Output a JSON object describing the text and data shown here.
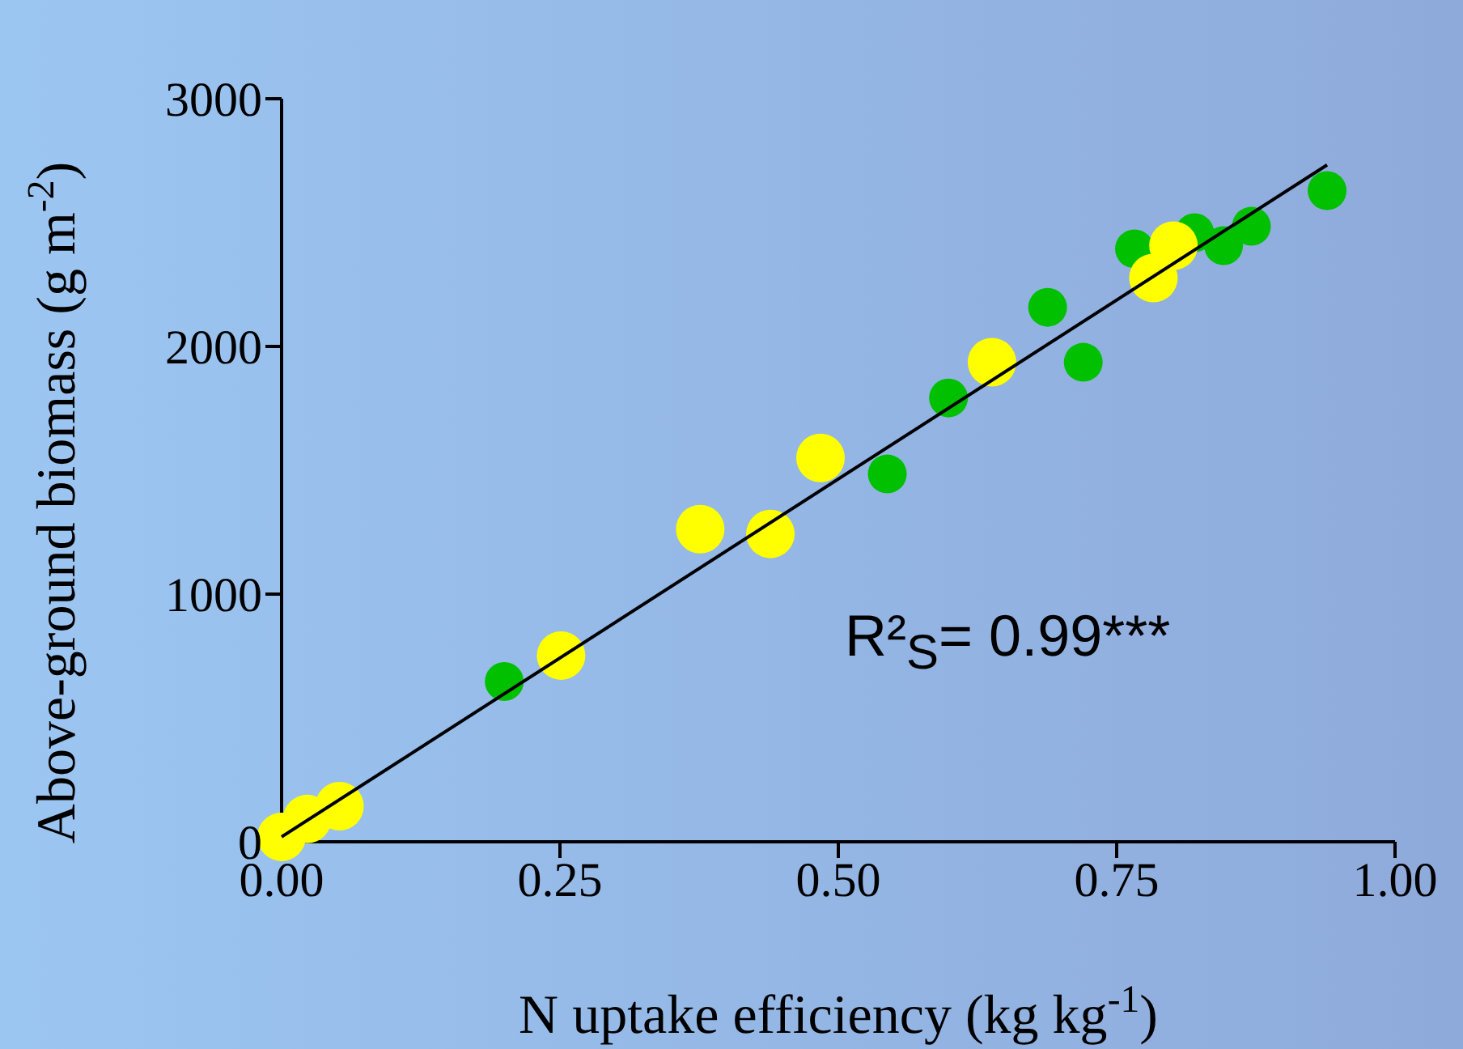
{
  "chart_data": {
    "type": "scatter",
    "xlabel": "N uptake efficiency (kg kg$^{-1}$)",
    "ylabel": "Above-ground biomass (g m$^{-2}$)",
    "annotations": [
      "R²$_{S}$= 0.99***"
    ],
    "series": [
      {
        "color": "#00c000",
        "x": [
          0.2,
          0.544,
          0.599,
          0.688,
          0.72,
          0.766,
          0.82,
          0.846,
          0.871,
          0.939
        ],
        "values": [
          647,
          1485,
          1792,
          2158,
          1936,
          2394,
          2459,
          2407,
          2485,
          2629
        ]
      },
      {
        "color": "#ffff00",
        "x": [
          0,
          0.023,
          0.052,
          0.251,
          0.376,
          0.439,
          0.484,
          0.638,
          0.783,
          0.801
        ],
        "values": [
          20,
          92,
          144,
          752,
          1262,
          1243,
          1550,
          1936,
          2276,
          2407
        ]
      },
      {
        "type": "line",
        "marker": "none",
        "color": "#000000",
        "x": [
          0,
          0.939
        ],
        "values": [
          20,
          2733
        ]
      }
    ],
    "xlim": [
      0,
      1
    ],
    "xticks": [
      {
        "value": 0,
        "label": "0.00"
      },
      {
        "value": 0.25,
        "label": "0.25"
      },
      {
        "value": 0.5,
        "label": "0.50"
      },
      {
        "value": 0.75,
        "label": "0.75"
      },
      {
        "value": 1,
        "label": "1.00"
      }
    ],
    "ylim": [
      0,
      3000
    ],
    "yticks": [
      0,
      1000,
      2000,
      3000
    ],
    "marker": "circle",
    "grid": false,
    "legend": false
  }
}
